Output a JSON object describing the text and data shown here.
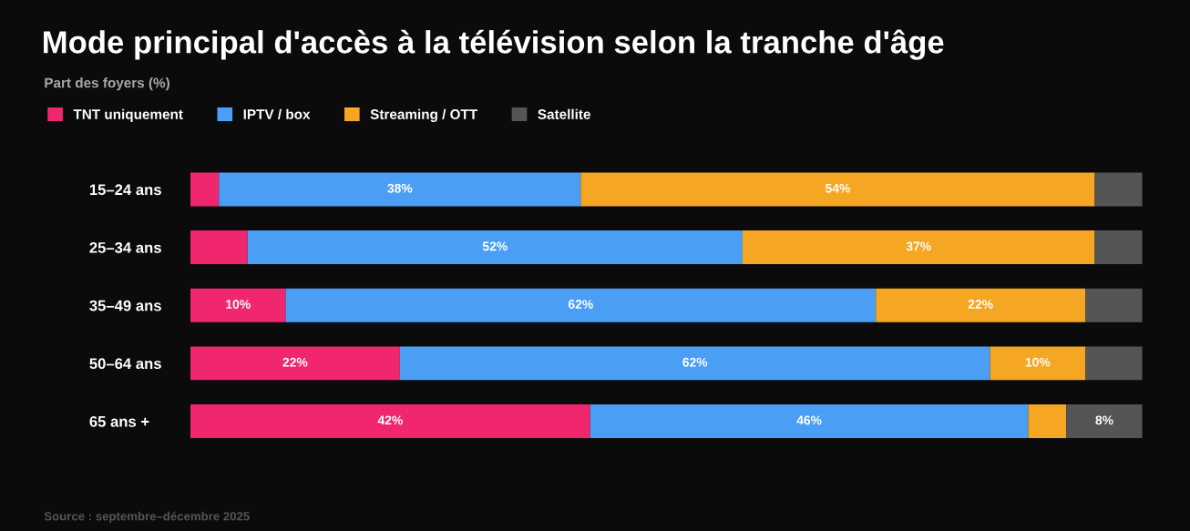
{
  "chart_data": {
    "type": "bar",
    "orientation": "horizontal",
    "stacked": true,
    "title": "Mode principal d'accès à la télévision selon la tranche d'âge",
    "subtitle": "Part des foyers (%)",
    "categories": [
      "15–24 ans",
      "25–34 ans",
      "35–49 ans",
      "50–64 ans",
      "65 ans +"
    ],
    "series": [
      {
        "name": "TNT uniquement",
        "color": "#f0266f",
        "values": [
          3,
          6,
          10,
          22,
          42
        ],
        "value_labels": [
          null,
          null,
          "10%",
          "22%",
          "42%"
        ]
      },
      {
        "name": "IPTV / box",
        "color": "#4a9ff5",
        "values": [
          38,
          52,
          62,
          62,
          46
        ],
        "value_labels": [
          "38%",
          "52%",
          "62%",
          "62%",
          "46%"
        ]
      },
      {
        "name": "Streaming / OTT",
        "color": "#f5a623",
        "values": [
          54,
          37,
          22,
          10,
          4
        ],
        "value_labels": [
          "54%",
          "37%",
          "22%",
          "10%",
          null
        ]
      },
      {
        "name": "Satellite",
        "color": "#555555",
        "values": [
          5,
          5,
          6,
          6,
          8
        ],
        "value_labels": [
          null,
          null,
          null,
          null,
          "8%"
        ]
      }
    ],
    "legend": "top left",
    "grid": false,
    "annotations": [
      "Source : septembre–décembre 2025"
    ]
  }
}
